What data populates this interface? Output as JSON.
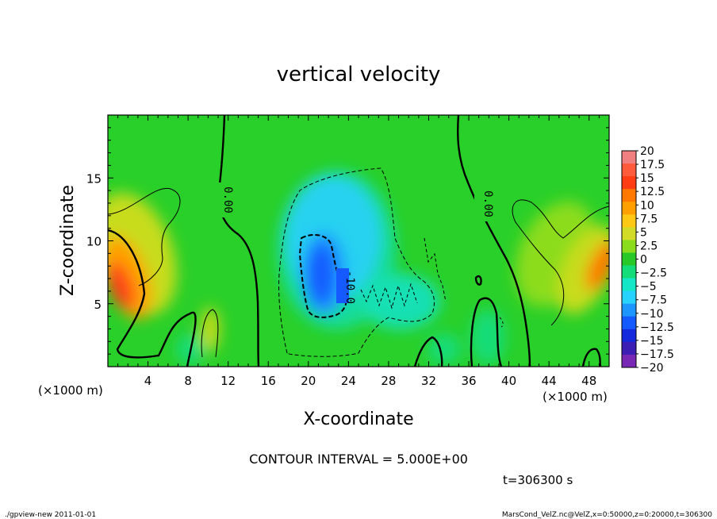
{
  "chart_data": {
    "type": "heatmap",
    "title": "vertical velocity",
    "xlabel": "X-coordinate",
    "ylabel": "Z-coordinate",
    "x_unit_left": "(×1000 m)",
    "x_unit_right": "(×1000 m)",
    "xlim": [
      0,
      50
    ],
    "ylim": [
      0,
      20
    ],
    "x_ticks": [
      "4",
      "8",
      "12",
      "16",
      "20",
      "24",
      "28",
      "32",
      "36",
      "40",
      "44",
      "48"
    ],
    "x_tick_values": [
      4,
      8,
      12,
      16,
      20,
      24,
      28,
      32,
      36,
      40,
      44,
      48
    ],
    "y_ticks": [
      "5",
      "10",
      "15"
    ],
    "y_tick_values": [
      5,
      10,
      15
    ],
    "colorbar_labels": [
      "20",
      "17.5",
      "15",
      "12.5",
      "10",
      "7.5",
      "5",
      "2.5",
      "0",
      "−2.5",
      "−5",
      "−7.5",
      "−10",
      "−12.5",
      "−15",
      "−17.5",
      "−20"
    ],
    "colorbar_values": [
      20,
      17.5,
      15,
      12.5,
      10,
      7.5,
      5,
      2.5,
      0,
      -2.5,
      -5,
      -7.5,
      -10,
      -12.5,
      -15,
      -17.5,
      -20
    ],
    "colorbar_colors": [
      "#f08080",
      "#ff5a3c",
      "#ff3c14",
      "#ff7800",
      "#ffa000",
      "#ffc814",
      "#d2dc28",
      "#8cdc1e",
      "#28c828",
      "#14dc78",
      "#14e6c8",
      "#28d2ff",
      "#1e96ff",
      "#145aff",
      "#1428dc",
      "#3c1eb4",
      "#7828b4"
    ],
    "contour_labels": [
      "0.00",
      "0.00",
      "-10.0"
    ],
    "contour_interval_text": "CONTOUR INTERVAL = 5.000E+00",
    "time_text": "t=306300 s"
  },
  "footer": {
    "left": "./gpview-new  2011-01-01",
    "right": "MarsCond_VelZ.nc@VelZ,x=0:50000,z=0:20000,t=306300"
  }
}
